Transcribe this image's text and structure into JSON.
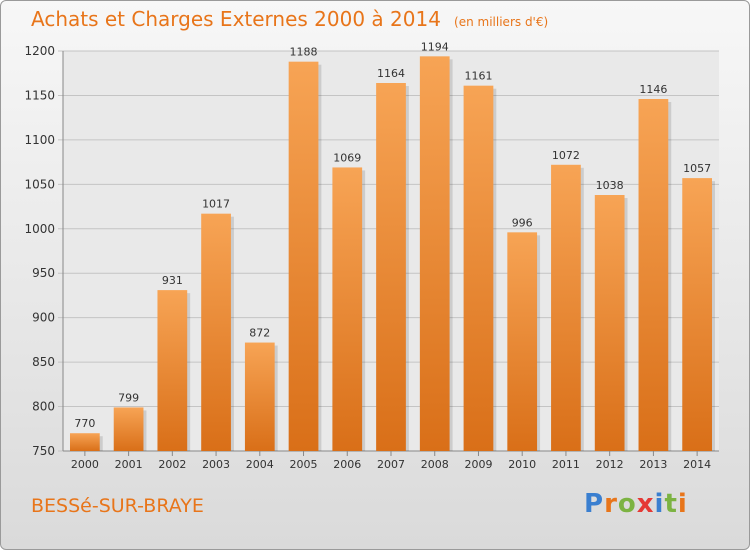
{
  "header": {
    "title": "Achats et Charges Externes 2000 à 2014",
    "unit": "(en milliers d'€)"
  },
  "footer": {
    "city": "BESSé-SUR-BRAYE",
    "brand": "Proxiti",
    "brand_colors": [
      "#3a7fd0",
      "#e8751a",
      "#7cb342",
      "#e53935",
      "#3a7fd0",
      "#7cb342",
      "#e8751a"
    ]
  },
  "colors": {
    "accent": "#e8751a",
    "bar_top": "#f7a455",
    "bar_bottom": "#d96f18"
  },
  "chart_data": {
    "type": "bar",
    "title": "Achats et Charges Externes 2000 à 2014",
    "xlabel": "",
    "ylabel": "",
    "categories": [
      "2000",
      "2001",
      "2002",
      "2003",
      "2004",
      "2005",
      "2006",
      "2007",
      "2008",
      "2009",
      "2010",
      "2011",
      "2012",
      "2013",
      "2014"
    ],
    "values": [
      770,
      799,
      931,
      1017,
      872,
      1188,
      1069,
      1164,
      1194,
      1161,
      996,
      1072,
      1038,
      1146,
      1057
    ],
    "ylim": [
      750,
      1200
    ],
    "yticks": [
      750,
      800,
      850,
      900,
      950,
      1000,
      1050,
      1100,
      1150,
      1200
    ],
    "grid": true,
    "legend": "none"
  }
}
